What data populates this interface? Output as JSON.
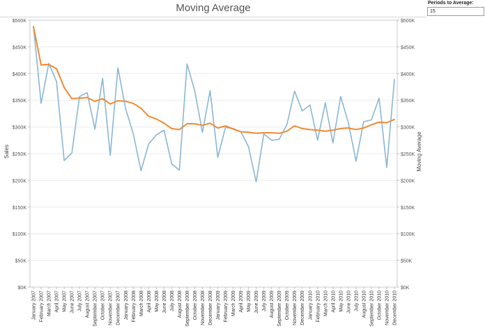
{
  "control": {
    "label": "Periods to Average:",
    "value": "15"
  },
  "chart_data": {
    "type": "line",
    "title": "Moving Average",
    "ylabel_left": "Sales",
    "ylabel_right": "Moving Average",
    "ylim": [
      0,
      500000
    ],
    "yticks": [
      0,
      50000,
      100000,
      150000,
      200000,
      250000,
      300000,
      350000,
      400000,
      450000,
      500000
    ],
    "ytick_labels": [
      "$0K",
      "$50K",
      "$100K",
      "$150K",
      "$200K",
      "$250K",
      "$300K",
      "$350K",
      "$400K",
      "$450K",
      "$500K"
    ],
    "grid": true,
    "categories": [
      "January 2007",
      "February 2007",
      "March 2007",
      "April 2007",
      "May 2007",
      "June 2007",
      "July 2007",
      "August 2007",
      "September 2007",
      "October 2007",
      "November 2007",
      "December 2007",
      "January 2008",
      "February 2008",
      "March 2008",
      "April 2008",
      "May 2008",
      "June 2008",
      "July 2008",
      "August 2008",
      "September 2008",
      "October 2008",
      "November 2008",
      "December 2008",
      "January 2009",
      "February 2009",
      "March 2009",
      "April 2009",
      "May 2009",
      "June 2009",
      "July 2009",
      "August 2009",
      "September 2009",
      "October 2009",
      "November 2009",
      "December 2009",
      "January 2010",
      "February 2010",
      "March 2010",
      "April 2010",
      "May 2010",
      "June 2010",
      "July 2010",
      "August 2010",
      "September 2010",
      "October 2010",
      "November 2010",
      "December 2010"
    ],
    "tick_labels": [
      "January 2007",
      "February 2007",
      "March 2007",
      "April 2007",
      "May 2007",
      "June 2007",
      "July 2007",
      "August 2007",
      "September 2007",
      "October 2007",
      "November 2007",
      "December 2007",
      "January 2008",
      "February 2008",
      "March 2008",
      "April 2008",
      "May 2008",
      "June 2008",
      "July 2008",
      "August 2008",
      "September 2008",
      "October 2008",
      "November 2008",
      "December 2008",
      "January 2009",
      "February 2009",
      "March 2009",
      "April 2009",
      "May 2009",
      "June 2009",
      "July 2009",
      "August 2009",
      "September 2009",
      "October 2009",
      "November 2009",
      "December 2009",
      "January 2010",
      "February 2010",
      "March 2010",
      "April 2010",
      "May 2010",
      "June 2010",
      "July 2010",
      "August 2010",
      "September 2010",
      "October 2010",
      "November 2010",
      "December 2010"
    ],
    "series": [
      {
        "color": "#8ab6d4",
        "values": [
          488000,
          344000,
          419000,
          385000,
          237000,
          251000,
          357000,
          364000,
          296000,
          391000,
          247000,
          411000,
          334000,
          287000,
          218000,
          268000,
          285000,
          294000,
          231000,
          219000,
          418000,
          368000,
          290000,
          368000,
          243000,
          299000,
          297000,
          291000,
          263000,
          197000,
          287000,
          275000,
          277000,
          304000,
          367000,
          330000,
          341000,
          275000,
          345000,
          270000,
          357000,
          308000,
          236000,
          310000,
          313000,
          354000,
          224000,
          389000
        ]
      },
      {
        "color": "#f08a32",
        "values": [
          488000,
          416000,
          417000,
          409000,
          374000,
          353000,
          354000,
          355000,
          348000,
          353000,
          343000,
          349000,
          348000,
          344000,
          335000,
          320000,
          315000,
          307000,
          297000,
          295000,
          306000,
          306000,
          303000,
          307000,
          298000,
          302000,
          296000,
          291000,
          290000,
          288000,
          289000,
          289000,
          288000,
          292000,
          302000,
          297000,
          295000,
          294000,
          292000,
          294000,
          297000,
          298000,
          295000,
          298000,
          304000,
          309000,
          308000,
          314000
        ]
      }
    ]
  }
}
